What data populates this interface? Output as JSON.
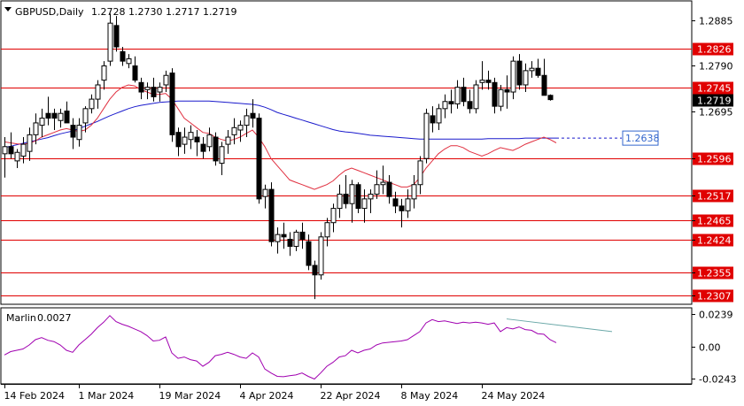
{
  "chart_data": {
    "type": "candlestick",
    "title": "GBPUSD,Daily",
    "ohlc_header": "1.2728 1.2730 1.2717 1.2719",
    "price_axis": {
      "ylim": [
        1.229,
        1.2925
      ],
      "ticks": [
        "1.2885",
        "1.2790",
        "1.2695",
        "1.2596",
        "1.2517",
        "1.2465",
        "1.2424",
        "1.2355",
        "1.2307"
      ]
    },
    "x_tick_labels": [
      "14 Feb 2024",
      "1 Mar 2024",
      "19 Mar 2024",
      "4 Apr 2024",
      "22 Apr 2024",
      "8 May 2024",
      "24 May 2024"
    ],
    "x_tick_index": [
      0,
      12,
      25,
      38,
      51,
      64,
      77
    ],
    "horizontal_levels": [
      {
        "label": "1.2826",
        "value": 1.2826
      },
      {
        "label": "1.2745",
        "value": 1.2745
      },
      {
        "label": "1.2596",
        "value": 1.2596
      },
      {
        "label": "1.2517",
        "value": 1.2517
      },
      {
        "label": "1.2465",
        "value": 1.2465
      },
      {
        "label": "1.2424",
        "value": 1.2424
      },
      {
        "label": "1.2355",
        "value": 1.2355
      },
      {
        "label": "1.2307",
        "value": 1.2307
      }
    ],
    "current_price": {
      "label": "1.2719",
      "value": 1.2719
    },
    "ma_blue_label": {
      "label": "1.2638",
      "value": 1.2638
    },
    "candles": [
      [
        1.2605,
        1.264,
        1.2555,
        1.262
      ],
      [
        1.262,
        1.265,
        1.2595,
        1.2605
      ],
      [
        1.259,
        1.2615,
        1.2575,
        1.2608
      ],
      [
        1.26,
        1.264,
        1.2585,
        1.2625
      ],
      [
        1.261,
        1.266,
        1.259,
        1.2645
      ],
      [
        1.2645,
        1.269,
        1.2625,
        1.267
      ],
      [
        1.2665,
        1.27,
        1.264,
        1.268
      ],
      [
        1.269,
        1.2725,
        1.2665,
        1.268
      ],
      [
        1.269,
        1.27,
        1.2655,
        1.268
      ],
      [
        1.2675,
        1.27,
        1.266,
        1.269
      ],
      [
        1.2695,
        1.2715,
        1.2675,
        1.267
      ],
      [
        1.2665,
        1.268,
        1.2615,
        1.264
      ],
      [
        1.2635,
        1.268,
        1.262,
        1.2665
      ],
      [
        1.267,
        1.2705,
        1.265,
        1.27
      ],
      [
        1.27,
        1.273,
        1.269,
        1.272
      ],
      [
        1.272,
        1.276,
        1.27,
        1.275
      ],
      [
        1.276,
        1.28,
        1.274,
        1.279
      ],
      [
        1.28,
        1.29,
        1.279,
        1.288
      ],
      [
        1.2875,
        1.2895,
        1.282,
        1.283
      ],
      [
        1.282,
        1.283,
        1.279,
        1.28
      ],
      [
        1.2795,
        1.2815,
        1.2785,
        1.2805
      ],
      [
        1.279,
        1.281,
        1.2755,
        1.276
      ],
      [
        1.2755,
        1.2765,
        1.272,
        1.2735
      ],
      [
        1.274,
        1.2755,
        1.272,
        1.2745
      ],
      [
        1.2745,
        1.2765,
        1.2715,
        1.2725
      ],
      [
        1.2735,
        1.2755,
        1.2715,
        1.2745
      ],
      [
        1.275,
        1.278,
        1.2735,
        1.277
      ],
      [
        1.2775,
        1.2785,
        1.263,
        1.2645
      ],
      [
        1.265,
        1.266,
        1.26,
        1.262
      ],
      [
        1.2625,
        1.266,
        1.2605,
        1.264
      ],
      [
        1.2635,
        1.2665,
        1.2615,
        1.265
      ],
      [
        1.264,
        1.2655,
        1.26,
        1.263
      ],
      [
        1.2625,
        1.264,
        1.2595,
        1.261
      ],
      [
        1.262,
        1.266,
        1.261,
        1.2645
      ],
      [
        1.264,
        1.265,
        1.258,
        1.259
      ],
      [
        1.2585,
        1.263,
        1.256,
        1.262
      ],
      [
        1.2625,
        1.2655,
        1.2605,
        1.264
      ],
      [
        1.2645,
        1.268,
        1.2625,
        1.266
      ],
      [
        1.2655,
        1.2675,
        1.263,
        1.2665
      ],
      [
        1.2665,
        1.27,
        1.264,
        1.2685
      ],
      [
        1.269,
        1.272,
        1.266,
        1.268
      ],
      [
        1.268,
        1.269,
        1.25,
        1.251
      ],
      [
        1.2515,
        1.254,
        1.249,
        1.253
      ],
      [
        1.253,
        1.2545,
        1.241,
        1.242
      ],
      [
        1.242,
        1.245,
        1.2395,
        1.2435
      ],
      [
        1.2435,
        1.246,
        1.2405,
        1.243
      ],
      [
        1.2425,
        1.244,
        1.239,
        1.241
      ],
      [
        1.241,
        1.2445,
        1.24,
        1.244
      ],
      [
        1.244,
        1.246,
        1.2405,
        1.2425
      ],
      [
        1.242,
        1.2435,
        1.236,
        1.237
      ],
      [
        1.237,
        1.238,
        1.2299,
        1.235
      ],
      [
        1.235,
        1.244,
        1.234,
        1.243
      ],
      [
        1.243,
        1.247,
        1.241,
        1.246
      ],
      [
        1.246,
        1.25,
        1.244,
        1.249
      ],
      [
        1.249,
        1.254,
        1.247,
        1.252
      ],
      [
        1.252,
        1.256,
        1.249,
        1.25
      ],
      [
        1.25,
        1.255,
        1.246,
        1.254
      ],
      [
        1.254,
        1.2545,
        1.248,
        1.249
      ],
      [
        1.249,
        1.253,
        1.246,
        1.251
      ],
      [
        1.251,
        1.253,
        1.248,
        1.252
      ],
      [
        1.252,
        1.257,
        1.251,
        1.254
      ],
      [
        1.254,
        1.258,
        1.252,
        1.2545
      ],
      [
        1.2545,
        1.256,
        1.25,
        1.2515
      ],
      [
        1.251,
        1.2525,
        1.248,
        1.2495
      ],
      [
        1.2495,
        1.251,
        1.245,
        1.2485
      ],
      [
        1.2485,
        1.253,
        1.247,
        1.251
      ],
      [
        1.251,
        1.256,
        1.249,
        1.254
      ],
      [
        1.254,
        1.26,
        1.252,
        1.259
      ],
      [
        1.2595,
        1.27,
        1.2585,
        1.269
      ],
      [
        1.2685,
        1.2705,
        1.265,
        1.267
      ],
      [
        1.267,
        1.271,
        1.2655,
        1.27
      ],
      [
        1.27,
        1.273,
        1.268,
        1.2715
      ],
      [
        1.2715,
        1.274,
        1.269,
        1.271
      ],
      [
        1.271,
        1.276,
        1.27,
        1.2745
      ],
      [
        1.2745,
        1.2765,
        1.2705,
        1.2715
      ],
      [
        1.2715,
        1.274,
        1.269,
        1.27
      ],
      [
        1.27,
        1.276,
        1.269,
        1.275
      ],
      [
        1.2755,
        1.28,
        1.274,
        1.276
      ],
      [
        1.276,
        1.278,
        1.274,
        1.2755
      ],
      [
        1.2755,
        1.2765,
        1.269,
        1.2705
      ],
      [
        1.2705,
        1.275,
        1.2695,
        1.274
      ],
      [
        1.274,
        1.277,
        1.27,
        1.2735
      ],
      [
        1.2735,
        1.281,
        1.272,
        1.28
      ],
      [
        1.28,
        1.2815,
        1.274,
        1.275
      ],
      [
        1.275,
        1.2795,
        1.2735,
        1.278
      ],
      [
        1.278,
        1.28,
        1.2765,
        1.2785
      ],
      [
        1.2785,
        1.2805,
        1.2765,
        1.277
      ],
      [
        1.277,
        1.2805,
        1.273,
        1.2728
      ],
      [
        1.2728,
        1.273,
        1.2717,
        1.2719
      ]
    ],
    "ma_blue": [
      1.2618,
      1.2621,
      1.2624,
      1.2627,
      1.263,
      1.2633,
      1.2636,
      1.2639,
      1.2643,
      1.2647,
      1.265,
      1.2653,
      1.2658,
      1.2663,
      1.2668,
      1.2673,
      1.2679,
      1.2685,
      1.269,
      1.2695,
      1.27,
      1.2704,
      1.2707,
      1.2709,
      1.2711,
      1.2713,
      1.2714,
      1.2715,
      1.2716,
      1.2716,
      1.2716,
      1.2716,
      1.2716,
      1.2716,
      1.2715,
      1.2714,
      1.2713,
      1.2712,
      1.2711,
      1.271,
      1.2709,
      1.2707,
      1.2703,
      1.2698,
      1.2692,
      1.2688,
      1.2684,
      1.268,
      1.2676,
      1.2672,
      1.2668,
      1.2664,
      1.266,
      1.2656,
      1.2653,
      1.2651,
      1.265,
      1.2648,
      1.2646,
      1.2644,
      1.2643,
      1.2642,
      1.2641,
      1.264,
      1.2639,
      1.2638,
      1.2637,
      1.2636,
      1.2636,
      1.2636,
      1.2636,
      1.2636,
      1.2636,
      1.2636,
      1.2636,
      1.2636,
      1.2636,
      1.2636,
      1.2637,
      1.2637,
      1.2637,
      1.2637,
      1.2637,
      1.2637,
      1.2638,
      1.2638,
      1.2638,
      1.2638,
      1.2638,
      1.2638
    ],
    "ma_red": [
      1.263,
      1.2628,
      1.2626,
      1.2625,
      1.2627,
      1.2632,
      1.264,
      1.2645,
      1.265,
      1.2655,
      1.2658,
      1.2655,
      1.2652,
      1.2655,
      1.2665,
      1.268,
      1.27,
      1.272,
      1.2735,
      1.2745,
      1.275,
      1.2748,
      1.274,
      1.2735,
      1.273,
      1.273,
      1.2732,
      1.272,
      1.27,
      1.268,
      1.267,
      1.266,
      1.265,
      1.2648,
      1.264,
      1.2635,
      1.2632,
      1.2635,
      1.264,
      1.2648,
      1.2655,
      1.264,
      1.262,
      1.2595,
      1.258,
      1.2565,
      1.255,
      1.2545,
      1.254,
      1.2535,
      1.253,
      1.2535,
      1.254,
      1.2548,
      1.256,
      1.257,
      1.2575,
      1.257,
      1.2565,
      1.256,
      1.2555,
      1.255,
      1.2545,
      1.254,
      1.2535,
      1.2535,
      1.254,
      1.2555,
      1.2575,
      1.259,
      1.2605,
      1.2615,
      1.2622,
      1.2622,
      1.2618,
      1.261,
      1.2605,
      1.26,
      1.2605,
      1.2612,
      1.2618,
      1.2615,
      1.2612,
      1.2618,
      1.2625,
      1.263,
      1.2635,
      1.264,
      1.2635,
      1.2628
    ],
    "oscillator": {
      "name": "Marlin",
      "value_label": "0.0027",
      "ticks": [
        "0.0239",
        "0.00",
        "-0.0243"
      ],
      "ylim": [
        -0.0275,
        0.0275
      ],
      "values": [
        -0.0065,
        -0.004,
        -0.003,
        -0.002,
        0.001,
        0.005,
        0.0065,
        0.0045,
        0.0035,
        0.001,
        -0.003,
        -0.0045,
        0.001,
        0.005,
        0.009,
        0.014,
        0.018,
        0.023,
        0.0185,
        0.0165,
        0.015,
        0.013,
        0.011,
        0.008,
        0.004,
        0.0045,
        0.007,
        -0.005,
        -0.009,
        -0.008,
        -0.01,
        -0.011,
        -0.015,
        -0.012,
        -0.007,
        -0.006,
        -0.0045,
        -0.006,
        -0.008,
        -0.009,
        -0.005,
        -0.008,
        -0.017,
        -0.02,
        -0.0225,
        -0.0228,
        -0.022,
        -0.0215,
        -0.02,
        -0.0225,
        -0.0245,
        -0.02,
        -0.015,
        -0.012,
        -0.008,
        -0.007,
        -0.003,
        -0.005,
        -0.003,
        -0.002,
        0.001,
        0.0025,
        0.003,
        0.0035,
        0.004,
        0.005,
        0.008,
        0.011,
        0.0175,
        0.02,
        0.0185,
        0.019,
        0.018,
        0.017,
        0.018,
        0.0175,
        0.018,
        0.0175,
        0.0165,
        0.0175,
        0.011,
        0.014,
        0.013,
        0.0145,
        0.0125,
        0.012,
        0.0095,
        0.009,
        0.005,
        0.0027
      ],
      "trendline": [
        [
          81,
          0.0205
        ],
        [
          98,
          0.011
        ]
      ]
    },
    "colors": {
      "bull_body": "#ffffff",
      "bear_body": "#000000",
      "level_line": "#e00000",
      "ma_blue": "#1a1acc",
      "ma_red": "#e03040",
      "oscillator": "#a000b0",
      "trendline": "#6aa8a8",
      "ma_label_border": "#3366cc"
    }
  }
}
